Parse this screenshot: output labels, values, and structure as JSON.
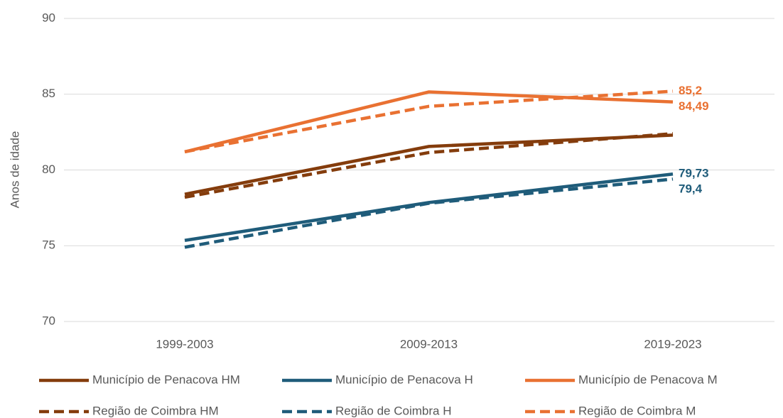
{
  "chart_data": {
    "type": "line",
    "y_label": "Anos de idade",
    "categories": [
      "1999-2003",
      "2009-2013",
      "2019-2023"
    ],
    "ylim": [
      70,
      90
    ],
    "yticks": [
      70,
      75,
      80,
      85,
      90
    ],
    "grid": true,
    "series": [
      {
        "name": "Município de Penacova HM",
        "color": "#843C0C",
        "dash": false,
        "values": [
          78.4,
          81.55,
          82.3
        ]
      },
      {
        "name": "Município de Penacova H",
        "color": "#1F5C7A",
        "dash": false,
        "values": [
          75.35,
          77.85,
          79.73
        ],
        "value_labels": [
          null,
          null,
          "79,73"
        ]
      },
      {
        "name": "Município de Penacova M",
        "color": "#E97132",
        "dash": false,
        "values": [
          81.2,
          85.15,
          84.49
        ],
        "value_labels": [
          null,
          null,
          "84,49"
        ]
      },
      {
        "name": "Região de Coimbra HM",
        "color": "#843C0C",
        "dash": true,
        "values": [
          78.2,
          81.15,
          82.4
        ]
      },
      {
        "name": "Região de Coimbra H",
        "color": "#1F5C7A",
        "dash": true,
        "values": [
          74.9,
          77.8,
          79.4
        ],
        "value_labels": [
          null,
          null,
          "79,4"
        ]
      },
      {
        "name": "Região de Coimbra M",
        "color": "#E97132",
        "dash": true,
        "values": [
          81.2,
          84.2,
          85.2
        ],
        "value_labels": [
          null,
          null,
          "85,2"
        ]
      }
    ]
  }
}
